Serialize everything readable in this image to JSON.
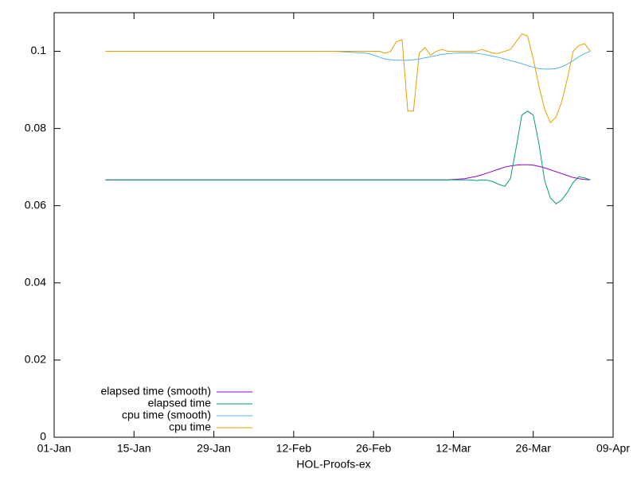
{
  "chart_data": {
    "type": "line",
    "xlabel": "HOL-Proofs-ex",
    "x": [
      "10-Jan",
      "19-Feb",
      "25-Feb",
      "26-Feb",
      "27-Feb",
      "28-Feb",
      "01-Mar",
      "02-Mar",
      "03-Mar",
      "04-Mar",
      "05-Mar",
      "06-Mar",
      "07-Mar",
      "08-Mar",
      "09-Mar",
      "10-Mar",
      "11-Mar",
      "12-Mar",
      "13-Mar",
      "14-Mar",
      "15-Mar",
      "16-Mar",
      "17-Mar",
      "18-Mar",
      "19-Mar",
      "20-Mar",
      "21-Mar",
      "22-Mar",
      "23-Mar",
      "24-Mar",
      "25-Mar",
      "26-Mar",
      "27-Mar",
      "28-Mar",
      "29-Mar",
      "30-Mar",
      "31-Mar",
      "01-Apr",
      "02-Apr",
      "03-Apr",
      "04-Apr",
      "05-Apr"
    ],
    "series": [
      {
        "name": "elapsed time (smooth)",
        "color": "#9400d3",
        "values": [
          0.0667,
          0.0667,
          0.0667,
          0.0667,
          0.0667,
          0.0667,
          0.0667,
          0.0667,
          0.0667,
          0.0667,
          0.0667,
          0.0667,
          0.0667,
          0.0667,
          0.0667,
          0.0667,
          0.0667,
          0.0668,
          0.0669,
          0.067,
          0.0673,
          0.0676,
          0.068,
          0.0685,
          0.069,
          0.0695,
          0.07,
          0.0703,
          0.0705,
          0.0706,
          0.0706,
          0.0705,
          0.0702,
          0.0698,
          0.0693,
          0.0688,
          0.0683,
          0.0678,
          0.0673,
          0.067,
          0.0668,
          0.0667
        ]
      },
      {
        "name": "elapsed time",
        "color": "#009e73",
        "values": [
          0.0667,
          0.0667,
          0.0667,
          0.0667,
          0.0667,
          0.0667,
          0.0667,
          0.0667,
          0.0667,
          0.0667,
          0.0667,
          0.0667,
          0.0667,
          0.0667,
          0.0667,
          0.0667,
          0.0667,
          0.0667,
          0.0667,
          0.0667,
          0.0667,
          0.0665,
          0.0667,
          0.0666,
          0.0662,
          0.0655,
          0.065,
          0.067,
          0.075,
          0.0835,
          0.0845,
          0.0835,
          0.076,
          0.0665,
          0.062,
          0.0605,
          0.0615,
          0.0635,
          0.066,
          0.0675,
          0.0672,
          0.0667
        ]
      },
      {
        "name": "cpu time (smooth)",
        "color": "#56b4e9",
        "values": [
          0.1,
          0.1,
          0.0995,
          0.099,
          0.0985,
          0.098,
          0.0978,
          0.0977,
          0.0977,
          0.0977,
          0.0978,
          0.098,
          0.0983,
          0.0986,
          0.0989,
          0.0992,
          0.0994,
          0.0995,
          0.0996,
          0.0996,
          0.0996,
          0.0995,
          0.0993,
          0.099,
          0.0987,
          0.0984,
          0.098,
          0.0976,
          0.0972,
          0.0968,
          0.0963,
          0.0959,
          0.0955,
          0.0954,
          0.0954,
          0.0955,
          0.096,
          0.0967,
          0.0976,
          0.0986,
          0.0994,
          0.1
        ]
      },
      {
        "name": "cpu time",
        "color": "#e69f00",
        "values": [
          0.1,
          0.1,
          0.1,
          0.1,
          0.1,
          0.0995,
          0.1,
          0.1025,
          0.103,
          0.0845,
          0.0845,
          0.0995,
          0.101,
          0.099,
          0.1,
          0.1005,
          0.1,
          0.1,
          0.1,
          0.1,
          0.1,
          0.1,
          0.1005,
          0.1,
          0.0995,
          0.0995,
          0.1,
          0.1005,
          0.1025,
          0.1045,
          0.104,
          0.098,
          0.091,
          0.085,
          0.0815,
          0.083,
          0.087,
          0.093,
          0.1,
          0.1015,
          0.102,
          0.1
        ]
      }
    ],
    "xlim": [
      "01-Jan",
      "09-Apr"
    ],
    "xticks": [
      "01-Jan",
      "15-Jan",
      "29-Jan",
      "12-Feb",
      "26-Feb",
      "12-Mar",
      "26-Mar",
      "09-Apr"
    ],
    "ylim": [
      0,
      0.11
    ],
    "yticks": [
      0,
      0.02,
      0.04,
      0.06,
      0.08,
      0.1
    ],
    "legend": "lower left"
  }
}
